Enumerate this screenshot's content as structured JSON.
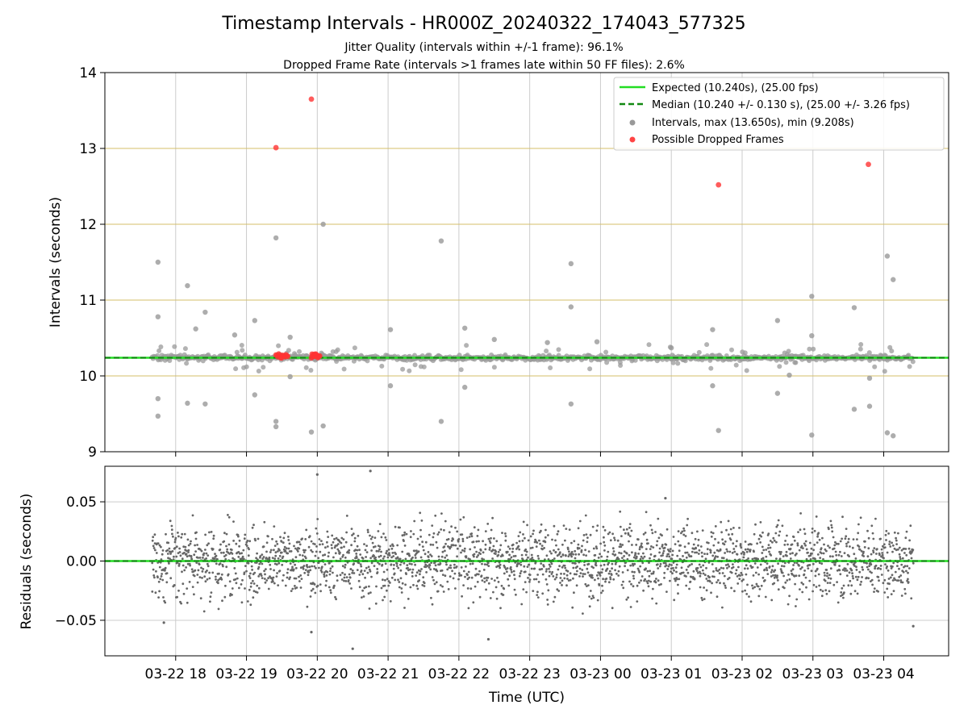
{
  "chart_data": [
    {
      "panel": "intervals",
      "type": "scatter",
      "title": "Timestamp Intervals - HR000Z_20240322_174043_577325",
      "subtitle_lines": [
        "Jitter Quality (intervals within +/-1 frame): 96.1%",
        "Dropped Frame Rate (intervals >1 frames late within 50 FF files): 2.6%"
      ],
      "xlabel": "",
      "ylabel": "Intervals (seconds)",
      "xlim": [
        "2024-03-22T17:00",
        "2024-03-23T04:55"
      ],
      "ylim": [
        9,
        14
      ],
      "yticks": [
        "9",
        "10",
        "11",
        "12",
        "13",
        "14"
      ],
      "grid": true,
      "legend_position": "upper right",
      "expected_interval": 10.24,
      "median_interval": 10.24,
      "legend": [
        {
          "label": "Expected (10.240s), (25.00 fps)",
          "color": "#22dd22",
          "kind": "solid-line"
        },
        {
          "label": "Median (10.240 +/- 0.130 s), (25.00 +/- 3.26 fps)",
          "color": "#118811",
          "kind": "dashed-line"
        },
        {
          "label": "Intervals, max (13.650s), min (9.208s)",
          "color": "#999999",
          "kind": "dot"
        },
        {
          "label": "Possible Dropped Frames",
          "color": "#ff4444",
          "kind": "dot"
        }
      ],
      "outlier_intervals": [
        {
          "t": "2024-03-22T17:45",
          "y": 11.5
        },
        {
          "t": "2024-03-22T17:45",
          "y": 10.78
        },
        {
          "t": "2024-03-22T17:45",
          "y": 9.7
        },
        {
          "t": "2024-03-22T17:45",
          "y": 9.47
        },
        {
          "t": "2024-03-22T18:10",
          "y": 11.19
        },
        {
          "t": "2024-03-22T18:10",
          "y": 9.64
        },
        {
          "t": "2024-03-22T18:17",
          "y": 10.62
        },
        {
          "t": "2024-03-22T18:25",
          "y": 10.84
        },
        {
          "t": "2024-03-22T18:25",
          "y": 9.63
        },
        {
          "t": "2024-03-22T18:50",
          "y": 10.54
        },
        {
          "t": "2024-03-22T19:07",
          "y": 10.73
        },
        {
          "t": "2024-03-22T19:07",
          "y": 9.75
        },
        {
          "t": "2024-03-22T19:25",
          "y": 11.82
        },
        {
          "t": "2024-03-22T19:25",
          "y": 9.4
        },
        {
          "t": "2024-03-22T19:25",
          "y": 9.33
        },
        {
          "t": "2024-03-22T19:37",
          "y": 10.51
        },
        {
          "t": "2024-03-22T19:37",
          "y": 9.99
        },
        {
          "t": "2024-03-22T19:55",
          "y": 9.26
        },
        {
          "t": "2024-03-22T20:05",
          "y": 12.0
        },
        {
          "t": "2024-03-22T20:05",
          "y": 9.34
        },
        {
          "t": "2024-03-22T21:02",
          "y": 10.61
        },
        {
          "t": "2024-03-22T21:02",
          "y": 9.87
        },
        {
          "t": "2024-03-22T21:45",
          "y": 11.78
        },
        {
          "t": "2024-03-22T21:45",
          "y": 9.4
        },
        {
          "t": "2024-03-22T22:05",
          "y": 10.63
        },
        {
          "t": "2024-03-22T22:05",
          "y": 9.85
        },
        {
          "t": "2024-03-22T22:30",
          "y": 10.48
        },
        {
          "t": "2024-03-22T23:15",
          "y": 10.44
        },
        {
          "t": "2024-03-22T23:35",
          "y": 11.48
        },
        {
          "t": "2024-03-22T23:35",
          "y": 10.91
        },
        {
          "t": "2024-03-22T23:35",
          "y": 9.63
        },
        {
          "t": "2024-03-22T23:57",
          "y": 10.45
        },
        {
          "t": "2024-03-23T01:00",
          "y": 10.37
        },
        {
          "t": "2024-03-23T01:35",
          "y": 10.61
        },
        {
          "t": "2024-03-23T01:35",
          "y": 9.87
        },
        {
          "t": "2024-03-23T01:40",
          "y": 9.28
        },
        {
          "t": "2024-03-23T02:30",
          "y": 10.73
        },
        {
          "t": "2024-03-23T02:30",
          "y": 9.77
        },
        {
          "t": "2024-03-23T02:40",
          "y": 10.01
        },
        {
          "t": "2024-03-23T02:59",
          "y": 11.05
        },
        {
          "t": "2024-03-23T02:59",
          "y": 10.53
        },
        {
          "t": "2024-03-23T02:59",
          "y": 9.22
        },
        {
          "t": "2024-03-23T03:35",
          "y": 10.9
        },
        {
          "t": "2024-03-23T03:35",
          "y": 9.56
        },
        {
          "t": "2024-03-23T03:48",
          "y": 9.97
        },
        {
          "t": "2024-03-23T03:48",
          "y": 9.6
        },
        {
          "t": "2024-03-23T04:03",
          "y": 11.58
        },
        {
          "t": "2024-03-23T04:08",
          "y": 11.27
        },
        {
          "t": "2024-03-23T04:03",
          "y": 9.25
        },
        {
          "t": "2024-03-23T04:08",
          "y": 9.21
        }
      ],
      "dropped_frames": [
        {
          "t": "2024-03-22T19:25",
          "y": 13.01
        },
        {
          "t": "2024-03-22T19:55",
          "y": 13.65
        },
        {
          "t": "2024-03-23T01:40",
          "y": 12.52
        },
        {
          "t": "2024-03-23T03:47",
          "y": 12.79
        }
      ],
      "dropped_frame_clusters": [
        {
          "t_start": "2024-03-22T19:25",
          "t_end": "2024-03-22T19:35",
          "y": 10.26
        },
        {
          "t_start": "2024-03-22T19:55",
          "t_end": "2024-03-22T20:02",
          "y": 10.26
        }
      ]
    },
    {
      "panel": "residuals",
      "type": "scatter",
      "xlabel": "Time (UTC)",
      "ylabel": "Residuals (seconds)",
      "xlim": [
        "2024-03-22T17:00",
        "2024-03-23T04:55"
      ],
      "ylim": [
        -0.08,
        0.08
      ],
      "yticks": [
        "−0.05",
        "0.00",
        "0.05"
      ],
      "ytick_values": [
        -0.05,
        0.0,
        0.05
      ],
      "xticks": [
        "03-22 18",
        "03-22 19",
        "03-22 20",
        "03-22 21",
        "03-22 22",
        "03-22 23",
        "03-23 00",
        "03-23 01",
        "03-23 02",
        "03-23 03",
        "03-23 04"
      ],
      "xtick_times": [
        "2024-03-22T18:00",
        "2024-03-22T19:00",
        "2024-03-22T20:00",
        "2024-03-22T21:00",
        "2024-03-22T22:00",
        "2024-03-22T23:00",
        "2024-03-23T00:00",
        "2024-03-23T01:00",
        "2024-03-23T02:00",
        "2024-03-23T03:00",
        "2024-03-23T04:00"
      ],
      "grid": true,
      "residual_stats": {
        "center": 0.0,
        "typical_spread": 0.015,
        "max": 0.076,
        "min": -0.074
      },
      "data_span": [
        "2024-03-22T17:40",
        "2024-03-23T04:25"
      ],
      "residual_extremes": [
        {
          "t": "2024-03-22T20:00",
          "y": 0.073
        },
        {
          "t": "2024-03-22T20:45",
          "y": 0.076
        },
        {
          "t": "2024-03-22T20:30",
          "y": -0.074
        },
        {
          "t": "2024-03-22T22:25",
          "y": -0.066
        },
        {
          "t": "2024-03-22T19:55",
          "y": -0.06
        },
        {
          "t": "2024-03-23T04:25",
          "y": -0.055
        },
        {
          "t": "2024-03-23T00:55",
          "y": 0.053
        },
        {
          "t": "2024-03-22T17:50",
          "y": -0.052
        }
      ]
    }
  ]
}
